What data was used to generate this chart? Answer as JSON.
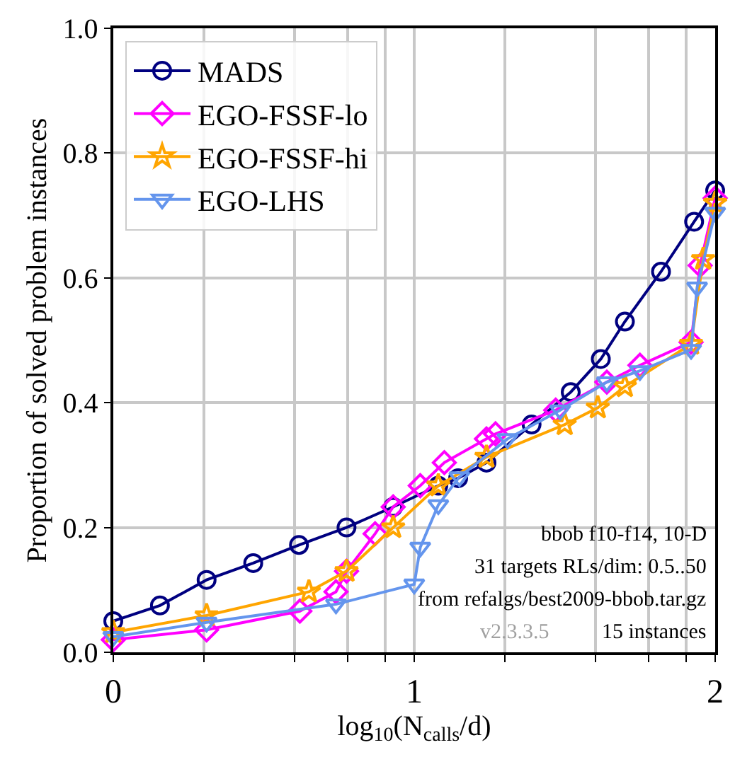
{
  "chart_data": {
    "type": "line",
    "xlabel": "log$_{10}$(N$_{calls}$/d)",
    "ylabel": "Proportion of solved problem instances",
    "xlim": [
      0,
      2
    ],
    "ylim": [
      0,
      1.0
    ],
    "xticks": [
      0,
      {
        "value": 0.301,
        "label": null
      },
      {
        "value": 0.602,
        "label": null
      },
      {
        "value": 0.778,
        "label": null
      },
      {
        "value": 0.903,
        "label": null
      },
      1,
      {
        "value": 1.301,
        "label": null
      },
      {
        "value": 1.602,
        "label": null
      },
      {
        "value": 1.778,
        "label": null
      },
      {
        "value": 1.903,
        "label": null
      },
      2
    ],
    "yticks": [
      {
        "value": 0,
        "label": "0.0"
      },
      0.2,
      0.4,
      0.6,
      0.8,
      {
        "value": 1,
        "label": "1.0"
      }
    ],
    "grid": true,
    "legend": "top left",
    "series": [
      {
        "name": "MADS",
        "color": "#000080",
        "marker": "circle",
        "x": [
          0,
          0.155,
          0.31,
          0.465,
          0.617,
          0.775,
          0.93,
          1.08,
          1.146,
          1.24,
          1.39,
          1.52,
          1.62,
          1.7,
          1.82,
          1.93,
          2.0
        ],
        "values": [
          0.05,
          0.075,
          0.116,
          0.143,
          0.172,
          0.2,
          0.233,
          0.267,
          0.279,
          0.304,
          0.365,
          0.417,
          0.47,
          0.53,
          0.61,
          0.69,
          0.74
        ]
      },
      {
        "name": "EGO-FSSF-lo",
        "color": "#ff00ff",
        "marker": "diamond",
        "x": [
          0,
          0.31,
          0.62,
          0.74,
          0.775,
          0.87,
          0.93,
          1.02,
          1.1,
          1.24,
          1.27,
          1.47,
          1.64,
          1.75,
          1.92,
          1.95,
          2.0
        ],
        "values": [
          0.02,
          0.036,
          0.066,
          0.097,
          0.13,
          0.19,
          0.233,
          0.267,
          0.304,
          0.342,
          0.35,
          0.388,
          0.433,
          0.46,
          0.497,
          0.62,
          0.728
        ]
      },
      {
        "name": "EGO-FSSF-hi",
        "color": "#ffa500",
        "marker": "star",
        "x": [
          0,
          0.31,
          0.65,
          0.775,
          0.93,
          1.08,
          1.24,
          1.5,
          1.61,
          1.7,
          1.92,
          1.96,
          2.0
        ],
        "values": [
          0.032,
          0.059,
          0.097,
          0.13,
          0.2,
          0.267,
          0.313,
          0.365,
          0.392,
          0.426,
          0.494,
          0.63,
          0.72
        ]
      },
      {
        "name": "EGO-LHS",
        "color": "#6495ed",
        "marker": "triangle",
        "x": [
          0,
          0.31,
          0.74,
          1.0,
          1.02,
          1.08,
          1.15,
          1.31,
          1.485,
          1.64,
          1.75,
          1.92,
          1.94,
          2.0
        ],
        "values": [
          0.025,
          0.048,
          0.077,
          0.109,
          0.168,
          0.236,
          0.281,
          0.342,
          0.388,
          0.433,
          0.451,
          0.485,
          0.585,
          0.705
        ]
      }
    ],
    "annotations": [
      "bbob f10-f14, 10-D",
      "31 targets RLs/dim: 0.5..50",
      "from refalgs/best2009-bbob.tar.gz",
      "v2.3.3.5",
      "15 instances"
    ]
  }
}
